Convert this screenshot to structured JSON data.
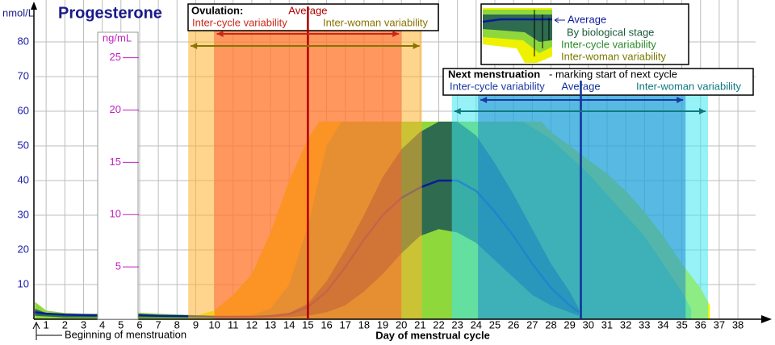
{
  "chart_data": {
    "type": "area",
    "title": "Progesterone",
    "y_label": "nmol/L",
    "y2_label": "ng/mL",
    "x_label": "Day of menstrual cycle",
    "annotation": "Beginning of menstruation",
    "xlim": [
      0,
      39.5
    ],
    "xticks": [
      1,
      2,
      3,
      4,
      5,
      6,
      7,
      8,
      9,
      10,
      11,
      12,
      13,
      14,
      15,
      16,
      17,
      18,
      19,
      20,
      21,
      22,
      23,
      24,
      25,
      26,
      27,
      28,
      29,
      30,
      31,
      32,
      33,
      34,
      35,
      36,
      37,
      38
    ],
    "ylim": [
      0,
      89
    ],
    "yticks": [
      10,
      20,
      30,
      40,
      50,
      60,
      70,
      80
    ],
    "y2lim": [
      0,
      29.5
    ],
    "y2ticks": [
      5,
      10,
      15,
      20,
      25
    ],
    "grid": true,
    "series": [
      {
        "name": "Inter-woman variability",
        "color": "#eef200",
        "x": [
          8.5,
          9,
          10,
          11,
          12,
          13,
          14,
          15,
          15.6,
          20,
          24,
          27.5,
          28,
          29,
          30,
          31,
          32,
          33,
          34,
          35,
          36,
          36.5
        ],
        "upper": [
          0.5,
          1,
          2.5,
          7,
          13,
          25,
          40,
          52,
          57,
          57,
          57,
          57,
          54,
          50,
          46,
          42,
          37,
          31,
          24,
          16,
          9,
          4
        ],
        "lower": [
          0,
          0,
          0,
          0,
          0,
          0,
          0,
          0,
          0,
          0,
          0,
          0,
          0,
          0,
          0,
          0,
          0,
          0,
          0,
          0,
          0,
          0
        ]
      },
      {
        "name": "Inter-cycle variability",
        "color": "#8fd83c",
        "x": [
          0.4,
          1,
          2,
          3,
          4,
          5,
          6,
          7,
          8,
          9,
          10,
          11,
          12,
          13,
          14,
          15,
          16,
          16.8,
          20,
          24,
          26.5,
          28,
          29,
          30,
          31,
          32,
          33,
          34,
          35,
          35.5
        ],
        "upper": [
          5,
          2.5,
          1.8,
          1.6,
          1.6,
          1.9,
          1.9,
          1.6,
          1.4,
          1.2,
          1,
          1,
          1.2,
          3,
          10,
          27,
          50,
          57,
          57,
          57,
          57,
          52,
          47,
          42,
          36,
          30,
          24,
          16,
          8,
          3
        ],
        "lower": [
          0,
          0,
          0,
          0,
          0,
          0,
          0,
          0,
          0,
          0,
          0,
          0,
          0,
          0,
          0,
          0,
          0,
          0,
          0,
          0,
          0,
          0,
          0,
          0,
          0,
          0,
          0,
          0,
          0,
          0
        ]
      },
      {
        "name": "By biological stage",
        "color": "#2e6b4f",
        "x": [
          0.4,
          1,
          2,
          3,
          4,
          5,
          6,
          7,
          8,
          9,
          10,
          11,
          12,
          13,
          14,
          15,
          16,
          17,
          18,
          19,
          20,
          21,
          22,
          23,
          24,
          25,
          26,
          27,
          28,
          29,
          29.5
        ],
        "upper": [
          3,
          1.8,
          1.3,
          1.2,
          1.1,
          1.3,
          1.3,
          1.1,
          1,
          0.9,
          0.8,
          0.8,
          0.8,
          1,
          1.8,
          4.5,
          11,
          20,
          30,
          41,
          49,
          54,
          57,
          57,
          53,
          45,
          36,
          26,
          16,
          8,
          3
        ],
        "lower": [
          1,
          0.8,
          0.5,
          0.5,
          0.5,
          0.5,
          0.5,
          0.5,
          0.5,
          0.5,
          0.5,
          0.5,
          0.5,
          0.5,
          0.6,
          1,
          2,
          4,
          8,
          13,
          19,
          24,
          26,
          25,
          22,
          17,
          12,
          7,
          4,
          2,
          1
        ]
      },
      {
        "name": "Average",
        "color": "#0a1a9a",
        "x": [
          0.4,
          1,
          2,
          3,
          4,
          5,
          6,
          7,
          8,
          9,
          10,
          11,
          12,
          13,
          14,
          15,
          16,
          17,
          18,
          19,
          20,
          21,
          22,
          23,
          24,
          25,
          26,
          27,
          28,
          29,
          29.5
        ],
        "values": [
          2,
          1.6,
          1.3,
          1.2,
          1.1,
          1.2,
          1.2,
          1,
          0.9,
          0.8,
          0.7,
          0.7,
          0.7,
          0.9,
          1.5,
          3.5,
          8,
          15,
          23,
          30,
          35,
          38,
          40,
          40,
          37,
          31,
          24,
          16,
          9,
          4,
          2
        ]
      }
    ],
    "events": [
      {
        "label": "Ovulation:",
        "average_label": "Average",
        "average": 15,
        "average_color": "#b00000",
        "ranges": [
          {
            "name": "Inter-cycle variability",
            "range": [
              10,
              20
            ],
            "color": "#ff5a30",
            "text_color": "#c8281a"
          },
          {
            "name": "Inter-woman variability",
            "range": [
              8.6,
              21.1
            ],
            "color": "#ffb030",
            "text_color": "#8a7400"
          }
        ]
      },
      {
        "label": "Next menstruation",
        "note": "- marking start of next cycle",
        "average_label": "Average",
        "average": 29.6,
        "average_color": "#10309a",
        "ranges": [
          {
            "name": "Inter-cycle variability",
            "range": [
              24.1,
              35.2
            ],
            "color": "#1a80d0",
            "text_color": "#1a38a0"
          },
          {
            "name": "Inter-woman variability",
            "range": [
              22.7,
              36.4
            ],
            "color": "#40e8f0",
            "text_color": "#107a80"
          }
        ]
      }
    ]
  }
}
